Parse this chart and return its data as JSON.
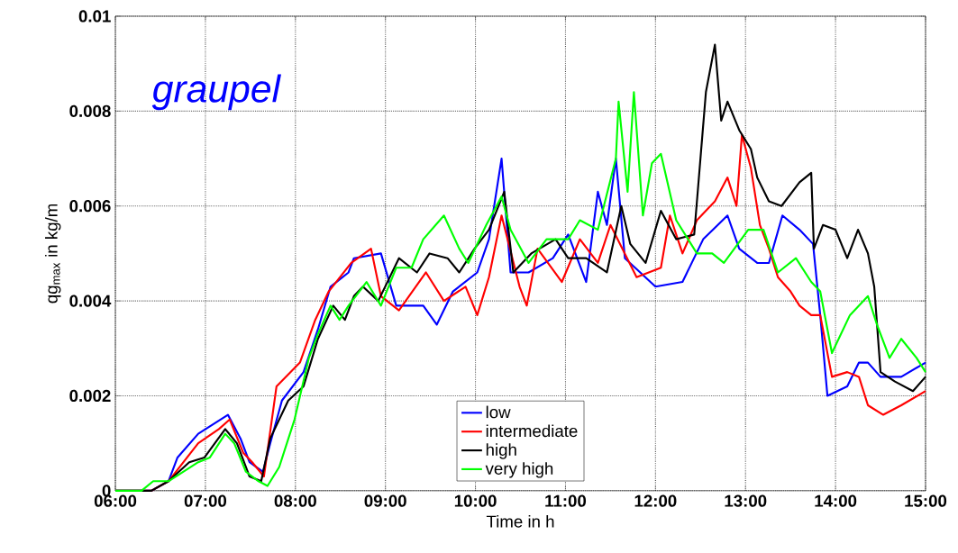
{
  "chart_data": {
    "type": "line",
    "xlabel": "Time in h",
    "ylabel": "qg$_{max}$ in kg/m",
    "annotations": [
      "graupel"
    ],
    "xlim": [
      6,
      15
    ],
    "ylim": [
      0,
      0.01
    ],
    "xticks": [
      {
        "value": 6,
        "label": "06:00"
      },
      {
        "value": 7,
        "label": "07:00"
      },
      {
        "value": 8,
        "label": "08:00"
      },
      {
        "value": 9,
        "label": "09:00"
      },
      {
        "value": 10,
        "label": "10:00"
      },
      {
        "value": 11,
        "label": "11:00"
      },
      {
        "value": 12,
        "label": "12:00"
      },
      {
        "value": 13,
        "label": "13:00"
      },
      {
        "value": 14,
        "label": "14:00"
      },
      {
        "value": 15,
        "label": "15:00"
      }
    ],
    "yticks": [
      0,
      0.002,
      0.004,
      0.006,
      0.008,
      0.01
    ],
    "grid": true,
    "legend": "bottom",
    "line_style": "solid",
    "marker": "none",
    "series": [
      {
        "name": "low",
        "color": "#0000ff",
        "x": [
          6.0,
          6.4,
          6.59,
          6.69,
          6.92,
          7.25,
          7.39,
          7.49,
          7.64,
          7.72,
          7.85,
          8.09,
          8.25,
          8.39,
          8.59,
          8.65,
          8.95,
          9.12,
          9.42,
          9.57,
          9.75,
          10.02,
          10.15,
          10.29,
          10.39,
          10.59,
          10.86,
          11.03,
          11.23,
          11.36,
          11.46,
          11.56,
          11.66,
          12.0,
          12.3,
          12.53,
          12.8,
          12.93,
          13.13,
          13.26,
          13.41,
          13.6,
          13.75,
          13.83,
          13.91,
          14.13,
          14.26,
          14.36,
          14.5,
          14.73,
          15.0
        ],
        "values": [
          0.0,
          0.0,
          0.0002,
          0.0007,
          0.0012,
          0.0016,
          0.0011,
          0.0006,
          0.0004,
          0.001,
          0.0019,
          0.0025,
          0.0034,
          0.0043,
          0.0046,
          0.0049,
          0.005,
          0.0039,
          0.0039,
          0.0035,
          0.0042,
          0.0046,
          0.0053,
          0.007,
          0.0046,
          0.0046,
          0.0049,
          0.0054,
          0.0044,
          0.0063,
          0.0056,
          0.007,
          0.0049,
          0.0043,
          0.0044,
          0.0053,
          0.0058,
          0.0051,
          0.0048,
          0.0048,
          0.0058,
          0.0055,
          0.0052,
          0.0037,
          0.002,
          0.0022,
          0.0027,
          0.0027,
          0.0024,
          0.0024,
          0.0027
        ]
      },
      {
        "name": "intermediate",
        "color": "#ff0000",
        "x": [
          6.0,
          6.4,
          6.59,
          6.92,
          7.15,
          7.27,
          7.42,
          7.52,
          7.65,
          7.79,
          8.05,
          8.22,
          8.37,
          8.62,
          8.84,
          8.95,
          9.15,
          9.45,
          9.65,
          9.89,
          10.02,
          10.15,
          10.29,
          10.49,
          10.57,
          10.69,
          10.96,
          11.16,
          11.36,
          11.5,
          11.79,
          12.06,
          12.16,
          12.3,
          12.46,
          12.66,
          12.8,
          12.9,
          12.96,
          13.06,
          13.16,
          13.26,
          13.36,
          13.5,
          13.6,
          13.73,
          13.83,
          13.96,
          14.13,
          14.26,
          14.36,
          14.53,
          14.73,
          15.0
        ],
        "values": [
          0.0,
          0.0,
          0.0002,
          0.001,
          0.0013,
          0.0015,
          0.0008,
          0.0006,
          0.0003,
          0.0022,
          0.0027,
          0.0036,
          0.0042,
          0.0048,
          0.0051,
          0.0041,
          0.0038,
          0.0046,
          0.004,
          0.0043,
          0.0037,
          0.0045,
          0.0058,
          0.0043,
          0.0039,
          0.0051,
          0.0044,
          0.0053,
          0.0048,
          0.0056,
          0.0045,
          0.0047,
          0.0058,
          0.005,
          0.0057,
          0.0061,
          0.0066,
          0.006,
          0.0075,
          0.0068,
          0.0056,
          0.0051,
          0.0045,
          0.0042,
          0.0039,
          0.0037,
          0.0037,
          0.0024,
          0.0025,
          0.0024,
          0.0018,
          0.0016,
          0.0018,
          0.0021
        ]
      },
      {
        "name": "high",
        "color": "#000000",
        "x": [
          6.0,
          6.4,
          6.59,
          6.82,
          6.99,
          7.22,
          7.35,
          7.49,
          7.62,
          7.72,
          7.92,
          8.09,
          8.25,
          8.42,
          8.55,
          8.65,
          8.75,
          8.92,
          9.15,
          9.35,
          9.49,
          9.69,
          9.82,
          9.99,
          10.15,
          10.32,
          10.42,
          10.62,
          10.89,
          11.03,
          11.23,
          11.46,
          11.62,
          11.72,
          11.89,
          12.06,
          12.23,
          12.43,
          12.56,
          12.66,
          12.73,
          12.8,
          12.93,
          13.06,
          13.13,
          13.26,
          13.4,
          13.6,
          13.73,
          13.76,
          13.86,
          14.0,
          14.13,
          14.25,
          14.36,
          14.43,
          14.5,
          14.66,
          14.86,
          15.0
        ],
        "values": [
          0.0,
          0.0,
          0.0002,
          0.0006,
          0.0007,
          0.0013,
          0.001,
          0.0003,
          0.0002,
          0.0011,
          0.0019,
          0.0022,
          0.0032,
          0.0039,
          0.0036,
          0.0041,
          0.0043,
          0.004,
          0.0049,
          0.0046,
          0.005,
          0.0049,
          0.0046,
          0.0051,
          0.0055,
          0.0063,
          0.0046,
          0.005,
          0.0053,
          0.0049,
          0.0049,
          0.0046,
          0.006,
          0.0052,
          0.0048,
          0.0059,
          0.0053,
          0.0054,
          0.0084,
          0.0094,
          0.0078,
          0.0082,
          0.0076,
          0.0072,
          0.0066,
          0.0061,
          0.006,
          0.0065,
          0.0067,
          0.0051,
          0.0056,
          0.0055,
          0.0049,
          0.0055,
          0.005,
          0.0043,
          0.0025,
          0.0023,
          0.0021,
          0.0024
        ]
      },
      {
        "name": "very high",
        "color": "#00ff00",
        "x": [
          6.0,
          6.29,
          6.42,
          6.59,
          6.92,
          7.05,
          7.22,
          7.32,
          7.45,
          7.59,
          7.69,
          7.82,
          7.99,
          8.15,
          8.25,
          8.39,
          8.49,
          8.59,
          8.79,
          8.95,
          9.12,
          9.29,
          9.42,
          9.65,
          9.82,
          9.92,
          10.12,
          10.29,
          10.39,
          10.59,
          10.79,
          11.03,
          11.16,
          11.36,
          11.56,
          11.59,
          11.69,
          11.76,
          11.86,
          11.96,
          12.06,
          12.23,
          12.46,
          12.63,
          12.76,
          13.03,
          13.2,
          13.36,
          13.56,
          13.73,
          13.83,
          13.96,
          14.16,
          14.36,
          14.46,
          14.6,
          14.73,
          14.9,
          15.0
        ],
        "values": [
          0.0,
          0.0,
          0.0002,
          0.0002,
          0.0006,
          0.0007,
          0.0012,
          0.001,
          0.0004,
          0.0002,
          0.0001,
          0.0005,
          0.0015,
          0.0028,
          0.0033,
          0.0039,
          0.0036,
          0.0039,
          0.0044,
          0.0039,
          0.0047,
          0.0047,
          0.0053,
          0.0058,
          0.0051,
          0.0048,
          0.0056,
          0.0062,
          0.0055,
          0.0048,
          0.0053,
          0.0053,
          0.0057,
          0.0055,
          0.007,
          0.0082,
          0.0063,
          0.0084,
          0.0058,
          0.0069,
          0.0071,
          0.0057,
          0.005,
          0.005,
          0.0048,
          0.0055,
          0.0055,
          0.0046,
          0.0049,
          0.0044,
          0.0042,
          0.0029,
          0.0037,
          0.0041,
          0.0035,
          0.0028,
          0.0032,
          0.0028,
          0.0025
        ]
      }
    ]
  }
}
